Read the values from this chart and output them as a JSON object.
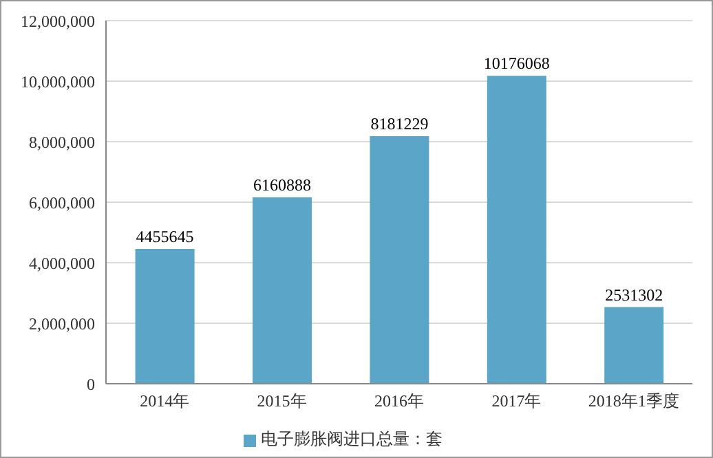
{
  "chart_data": {
    "type": "bar",
    "categories": [
      "2014年",
      "2015年",
      "2016年",
      "2017年",
      "2018年1季度"
    ],
    "series": [
      {
        "name": "电子膨胀阀进口总量：套",
        "color": "#5aa5c8",
        "values": [
          4455645,
          6160888,
          8181229,
          10176068,
          2531302
        ]
      }
    ],
    "ylim": [
      0,
      12000000
    ],
    "yticks": [
      {
        "value": 0,
        "label": "0"
      },
      {
        "value": 2000000,
        "label": "2,000,000"
      },
      {
        "value": 4000000,
        "label": "4,000,000"
      },
      {
        "value": 6000000,
        "label": "6,000,000"
      },
      {
        "value": 8000000,
        "label": "8,000,000"
      },
      {
        "value": 10000000,
        "label": "10,000,000"
      },
      {
        "value": 12000000,
        "label": "12,000,000"
      }
    ],
    "grid": "y",
    "legend": "bottom",
    "data_labels": true
  }
}
